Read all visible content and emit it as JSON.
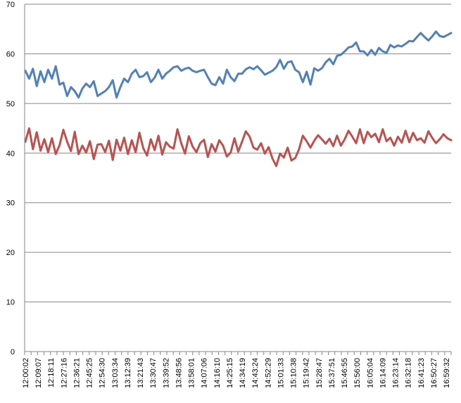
{
  "chart_data": {
    "type": "line",
    "title": "",
    "xlabel": "",
    "ylabel": "",
    "ylim": [
      0,
      70
    ],
    "y_ticks": [
      "0",
      "10",
      "20",
      "30",
      "40",
      "50",
      "60",
      "70"
    ],
    "x_tick_labels": [
      "12:00:02",
      "12:09:07",
      "12:18:11",
      "12:27:16",
      "12:36:21",
      "12:45:25",
      "12:54:30",
      "13:03:34",
      "13:12:39",
      "13:21:43",
      "13:30:47",
      "13:39:52",
      "13:48:56",
      "13:58:01",
      "14:07:06",
      "14:16:10",
      "14:25:15",
      "14:34:19",
      "14:43:24",
      "14:52:29",
      "15:01:33",
      "15:10:38",
      "15:19:42",
      "15:28:47",
      "15:37:51",
      "15:46:55",
      "15:56:00",
      "16:05:04",
      "16:14:09",
      "16:23:14",
      "16:32:18",
      "16:41:23",
      "16:50:27",
      "16:59:32"
    ],
    "grid": "horizontal",
    "legend": "none",
    "series": [
      {
        "color": "#4f81bd",
        "values": [
          56.6,
          55.0,
          57.0,
          53.5,
          56.5,
          54.3,
          56.8,
          55.0,
          57.5,
          53.8,
          54.2,
          51.5,
          53.3,
          52.5,
          51.2,
          53.0,
          54.0,
          53.3,
          54.5,
          51.5,
          52.0,
          52.5,
          53.3,
          54.7,
          51.2,
          53.3,
          55.0,
          54.3,
          56.0,
          56.8,
          55.3,
          55.5,
          56.3,
          54.3,
          55.2,
          56.8,
          55.0,
          56.0,
          56.6,
          57.3,
          57.5,
          56.6,
          57.0,
          57.2,
          56.6,
          56.3,
          56.6,
          56.8,
          55.3,
          54.0,
          53.7,
          55.3,
          54.0,
          56.8,
          55.3,
          54.5,
          56.0,
          56.0,
          56.9,
          57.3,
          56.9,
          57.5,
          56.7,
          55.8,
          56.2,
          56.6,
          57.3,
          58.8,
          57.0,
          58.3,
          58.5,
          56.8,
          56.3,
          54.3,
          56.4,
          53.8,
          57.1,
          56.6,
          57.1,
          58.3,
          59.0,
          57.9,
          59.6,
          59.8,
          60.5,
          61.3,
          61.5,
          62.3,
          60.5,
          60.5,
          59.7,
          60.8,
          59.8,
          61.2,
          60.5,
          60.2,
          61.8,
          61.3,
          61.7,
          61.5,
          62.0,
          62.6,
          62.5,
          63.4,
          64.2,
          63.4,
          62.7,
          63.5,
          64.5,
          63.6,
          63.4,
          63.8,
          64.2
        ]
      },
      {
        "color": "#c0504d",
        "values": [
          42.3,
          45.0,
          40.8,
          44.2,
          40.5,
          42.8,
          40.2,
          43.0,
          39.8,
          41.6,
          44.7,
          42.3,
          40.4,
          44.3,
          39.8,
          41.5,
          40.1,
          42.4,
          38.8,
          41.7,
          41.8,
          40.2,
          42.5,
          38.6,
          42.7,
          40.5,
          43.1,
          39.8,
          42.6,
          40.2,
          44.1,
          41.0,
          39.5,
          42.8,
          40.6,
          43.5,
          39.7,
          42.2,
          41.3,
          40.9,
          44.8,
          42.0,
          39.9,
          43.4,
          41.3,
          40.2,
          42.0,
          42.7,
          39.2,
          41.8,
          40.3,
          42.6,
          41.5,
          39.3,
          40.1,
          43.0,
          40.3,
          42.3,
          44.4,
          43.3,
          41.1,
          40.7,
          42.0,
          39.9,
          41.2,
          38.9,
          37.4,
          39.9,
          39.1,
          41.1,
          38.5,
          39.0,
          40.8,
          43.5,
          42.4,
          41.1,
          42.5,
          43.6,
          42.8,
          41.9,
          42.9,
          41.4,
          43.5,
          41.5,
          42.8,
          44.5,
          43.3,
          42.0,
          44.8,
          42.0,
          44.3,
          43.2,
          43.9,
          42.2,
          44.8,
          42.4,
          43.1,
          41.5,
          43.3,
          42.1,
          44.5,
          42.2,
          44.1,
          42.6,
          43.0,
          42.1,
          44.4,
          43.1,
          42.0,
          42.8,
          43.8,
          43.0,
          42.6
        ]
      }
    ]
  }
}
